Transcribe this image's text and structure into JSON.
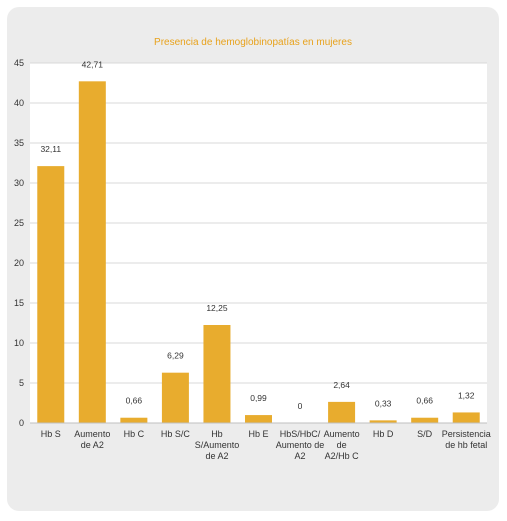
{
  "chart_data": {
    "type": "bar",
    "title": "Presencia de hemoglobinopatías en mujeres",
    "xlabel": "",
    "ylabel": "",
    "ylim": [
      0,
      45
    ],
    "yticks": [
      "0",
      "5",
      "10",
      "15",
      "20",
      "25",
      "30",
      "35",
      "40",
      "45"
    ],
    "grid": true,
    "legend": "none",
    "categories": [
      [
        "Hb S"
      ],
      [
        "Aumento",
        "de A2"
      ],
      [
        "Hb C"
      ],
      [
        "Hb S/C"
      ],
      [
        "Hb",
        "S/Aumento",
        "de A2"
      ],
      [
        "Hb E"
      ],
      [
        "HbS/HbC/",
        "Aumento de",
        "A2"
      ],
      [
        "Aumento",
        "de",
        "A2/Hb C"
      ],
      [
        "Hb D"
      ],
      [
        "S/D"
      ],
      [
        "Persistencia",
        "de hb fetal"
      ]
    ],
    "values": [
      32.11,
      42.71,
      0.66,
      6.29,
      12.25,
      0.99,
      0,
      2.64,
      0.33,
      0.66,
      1.32
    ],
    "data_labels": [
      "32,11",
      "42,71",
      "0,66",
      "6,29",
      "12,25",
      "0,99",
      "0",
      "2,64",
      "0,33",
      "0,66",
      "1,32"
    ],
    "colors": {
      "bar": "#e8ac2e",
      "title": "#e8a21c",
      "grid": "#d9d9d9",
      "plot_background": "#ffffff",
      "card_background": "#ececec"
    }
  }
}
